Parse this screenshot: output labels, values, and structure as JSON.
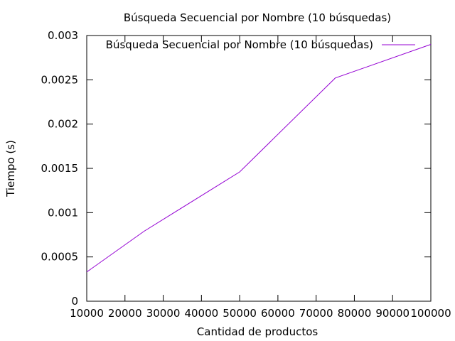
{
  "chart_data": {
    "type": "line",
    "title": "Búsqueda Secuencial por Nombre (10 búsquedas)",
    "xlabel": "Cantidad de productos",
    "ylabel": "Tiempo (s)",
    "xlim": [
      10000,
      100000
    ],
    "ylim": [
      0,
      0.003
    ],
    "x_ticks": [
      "10000",
      "20000",
      "30000",
      "40000",
      "50000",
      "60000",
      "70000",
      "80000",
      "90000",
      "100000"
    ],
    "y_ticks": [
      "0",
      "0.0005",
      "0.001",
      "0.0015",
      "0.002",
      "0.0025",
      "0.003"
    ],
    "grid": false,
    "legend_position": "top-right",
    "series": [
      {
        "name": "Búsqueda Secuencial por Nombre (10 búsquedas)",
        "color": "#9400d3",
        "x": [
          10000,
          25000,
          50000,
          75000,
          100000
        ],
        "y": [
          0.00033,
          0.00079,
          0.00146,
          0.00252,
          0.0029
        ]
      }
    ]
  }
}
